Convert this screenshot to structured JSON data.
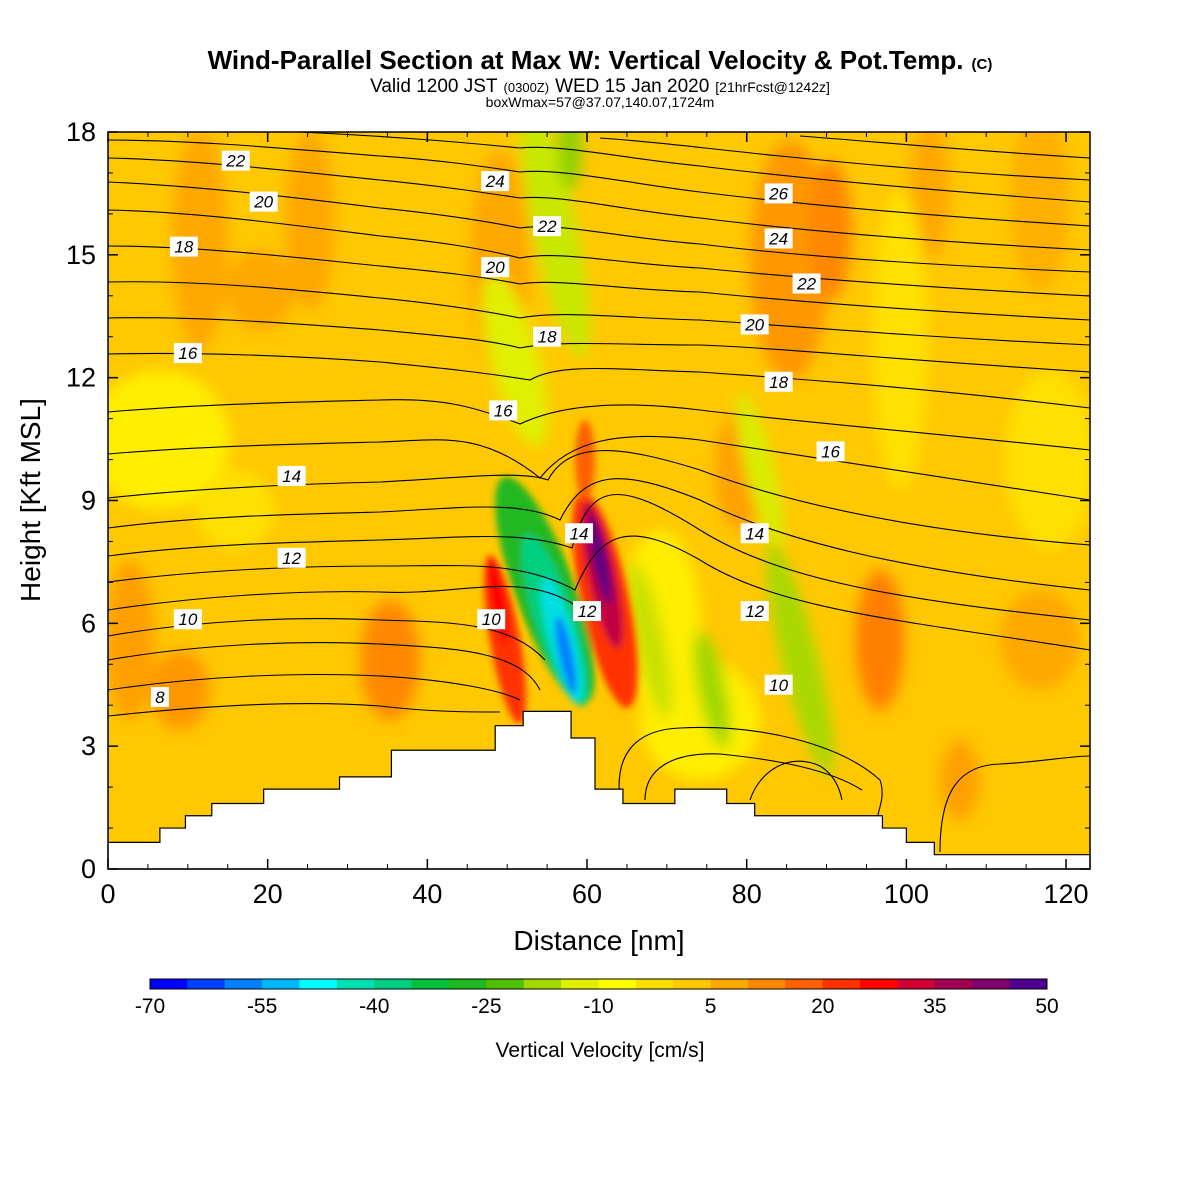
{
  "header": {
    "title": "Wind-Parallel Section at Max W: Vertical Velocity & Pot.Temp.",
    "copyright": "(C)",
    "valid_prefix": "Valid 1200 JST",
    "utc_time": "(0300Z)",
    "date": "WED 15 Jan 2020",
    "forecast": "[21hrFcst@1242z]",
    "box_info": "boxWmax=57@37.07,140.07,1724m"
  },
  "chart_data": {
    "type": "heatmap",
    "xlabel": "Distance [nm]",
    "ylabel": "Height [Kft MSL]",
    "xlim": [
      0,
      123
    ],
    "ylim": [
      0,
      18
    ],
    "x_ticks": [
      0,
      20,
      40,
      60,
      80,
      100,
      120
    ],
    "y_ticks": [
      0,
      3,
      6,
      9,
      12,
      15,
      18
    ],
    "colorbar": {
      "label": "Vertical Velocity [cm/s]",
      "min": -70,
      "max": 50,
      "step": 5,
      "tick_labels": [
        -70,
        -55,
        -40,
        -25,
        -10,
        5,
        20,
        35,
        50
      ],
      "colors": [
        "#0000ff",
        "#0040ff",
        "#0080ff",
        "#00b8ff",
        "#00ffff",
        "#00e0b0",
        "#00d080",
        "#00c040",
        "#20b820",
        "#50c000",
        "#a0d800",
        "#e0f000",
        "#ffff00",
        "#ffe000",
        "#ffc800",
        "#ffa800",
        "#ff8800",
        "#ff6000",
        "#ff3000",
        "#ff0000",
        "#d00030",
        "#a00050",
        "#800070",
        "#500090"
      ]
    },
    "isentropes_label": "Pot.Temp. (C)",
    "isentrope_labels": [
      {
        "value": 22,
        "x": 16,
        "y": 17.3
      },
      {
        "value": 20,
        "x": 19.5,
        "y": 16.3
      },
      {
        "value": 18,
        "x": 9.5,
        "y": 15.2
      },
      {
        "value": 16,
        "x": 10,
        "y": 12.6
      },
      {
        "value": 14,
        "x": 23,
        "y": 9.6
      },
      {
        "value": 12,
        "x": 23,
        "y": 7.6
      },
      {
        "value": 10,
        "x": 10,
        "y": 6.1
      },
      {
        "value": 8,
        "x": 6.5,
        "y": 4.2
      },
      {
        "value": 24,
        "x": 48.5,
        "y": 16.8
      },
      {
        "value": 22,
        "x": 55,
        "y": 15.7
      },
      {
        "value": 20,
        "x": 48.5,
        "y": 14.7
      },
      {
        "value": 18,
        "x": 55,
        "y": 13.0
      },
      {
        "value": 16,
        "x": 49.5,
        "y": 11.2
      },
      {
        "value": 14,
        "x": 59,
        "y": 8.2
      },
      {
        "value": 12,
        "x": 60,
        "y": 6.3
      },
      {
        "value": 10,
        "x": 48,
        "y": 6.1
      },
      {
        "value": 26,
        "x": 84,
        "y": 16.5
      },
      {
        "value": 24,
        "x": 84,
        "y": 15.4
      },
      {
        "value": 22,
        "x": 87.5,
        "y": 14.3
      },
      {
        "value": 20,
        "x": 81,
        "y": 13.3
      },
      {
        "value": 18,
        "x": 84,
        "y": 11.9
      },
      {
        "value": 16,
        "x": 90.5,
        "y": 10.2
      },
      {
        "value": 14,
        "x": 81,
        "y": 8.2
      },
      {
        "value": 12,
        "x": 81,
        "y": 6.3
      },
      {
        "value": 10,
        "x": 84,
        "y": 4.5
      }
    ],
    "terrain": [
      [
        0,
        0.65
      ],
      [
        6.5,
        0.65
      ],
      [
        6.5,
        1.0
      ],
      [
        9.7,
        1.0
      ],
      [
        9.7,
        1.3
      ],
      [
        13,
        1.3
      ],
      [
        13,
        1.6
      ],
      [
        19.5,
        1.6
      ],
      [
        19.5,
        1.95
      ],
      [
        29,
        1.95
      ],
      [
        29,
        2.25
      ],
      [
        35.5,
        2.25
      ],
      [
        35.5,
        2.9
      ],
      [
        48.5,
        2.9
      ],
      [
        48.5,
        3.5
      ],
      [
        52,
        3.5
      ],
      [
        52,
        3.85
      ],
      [
        58,
        3.85
      ],
      [
        58,
        3.2
      ],
      [
        61,
        3.2
      ],
      [
        61,
        1.95
      ],
      [
        64.5,
        1.95
      ],
      [
        64.5,
        1.6
      ],
      [
        71,
        1.6
      ],
      [
        71,
        1.95
      ],
      [
        77.5,
        1.95
      ],
      [
        77.5,
        1.6
      ],
      [
        81,
        1.6
      ],
      [
        81,
        1.3
      ],
      [
        97,
        1.3
      ],
      [
        97,
        1.0
      ],
      [
        100,
        1.0
      ],
      [
        100,
        0.65
      ],
      [
        103.5,
        0.65
      ],
      [
        103.5,
        0.35
      ],
      [
        123,
        0.35
      ]
    ]
  }
}
